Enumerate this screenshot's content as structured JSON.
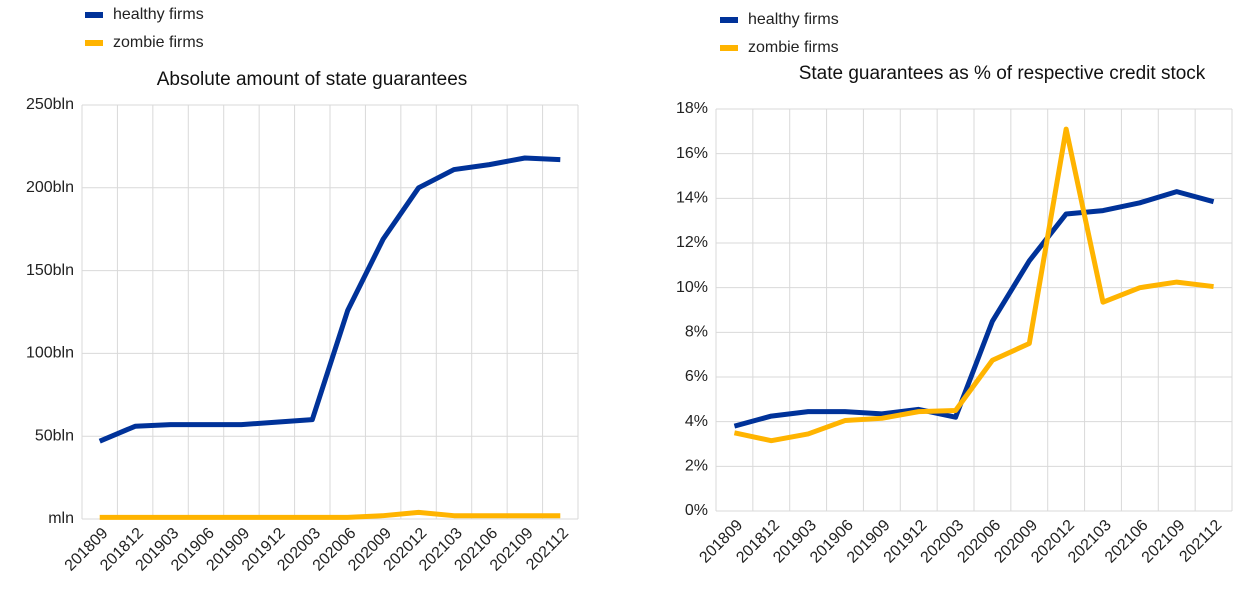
{
  "chart_data": [
    {
      "type": "line",
      "title": "Absolute amount of state guarantees",
      "categories": [
        "201809",
        "201812",
        "201903",
        "201906",
        "201909",
        "201912",
        "202003",
        "202006",
        "202009",
        "202012",
        "202103",
        "202106",
        "202109",
        "202112"
      ],
      "series": [
        {
          "name": "healthy firms",
          "color": "#003299",
          "values": [
            47,
            56,
            57,
            57,
            57,
            58.5,
            60,
            126,
            169,
            200,
            211,
            214,
            218,
            217
          ]
        },
        {
          "name": "zombie firms",
          "color": "#ffb400",
          "values": [
            1,
            1,
            1,
            1,
            1,
            1,
            1,
            1,
            2,
            4,
            2,
            2,
            2,
            2
          ]
        }
      ],
      "ylim": [
        0,
        250
      ],
      "yticks": [
        {
          "value": 0,
          "label": "mln"
        },
        {
          "value": 50,
          "label": "50bln"
        },
        {
          "value": 100,
          "label": "100bln"
        },
        {
          "value": 150,
          "label": "150bln"
        },
        {
          "value": 200,
          "label": "200bln"
        },
        {
          "value": 250,
          "label": "250bln"
        }
      ],
      "grid": true,
      "legend": "top-left"
    },
    {
      "type": "line",
      "title": "State guarantees as % of respective credit stock",
      "categories": [
        "201809",
        "201812",
        "201903",
        "201906",
        "201909",
        "201912",
        "202003",
        "202006",
        "202009",
        "202012",
        "202103",
        "202106",
        "202109",
        "202112"
      ],
      "series": [
        {
          "name": "healthy firms",
          "color": "#003299",
          "values": [
            3.8,
            4.25,
            4.45,
            4.45,
            4.35,
            4.55,
            4.2,
            8.5,
            11.2,
            13.3,
            13.45,
            13.8,
            14.3,
            13.85
          ]
        },
        {
          "name": "zombie firms",
          "color": "#ffb400",
          "values": [
            3.5,
            3.15,
            3.45,
            4.05,
            4.15,
            4.45,
            4.5,
            6.75,
            7.5,
            17.1,
            9.35,
            10.0,
            10.25,
            10.05
          ]
        }
      ],
      "ylim": [
        0,
        18
      ],
      "yticks": [
        {
          "value": 0,
          "label": "0%"
        },
        {
          "value": 2,
          "label": "2%"
        },
        {
          "value": 4,
          "label": "4%"
        },
        {
          "value": 6,
          "label": "6%"
        },
        {
          "value": 8,
          "label": "8%"
        },
        {
          "value": 10,
          "label": "10%"
        },
        {
          "value": 12,
          "label": "12%"
        },
        {
          "value": 14,
          "label": "14%"
        },
        {
          "value": 16,
          "label": "16%"
        },
        {
          "value": 18,
          "label": "18%"
        }
      ],
      "grid": true,
      "legend": "top-left"
    }
  ]
}
